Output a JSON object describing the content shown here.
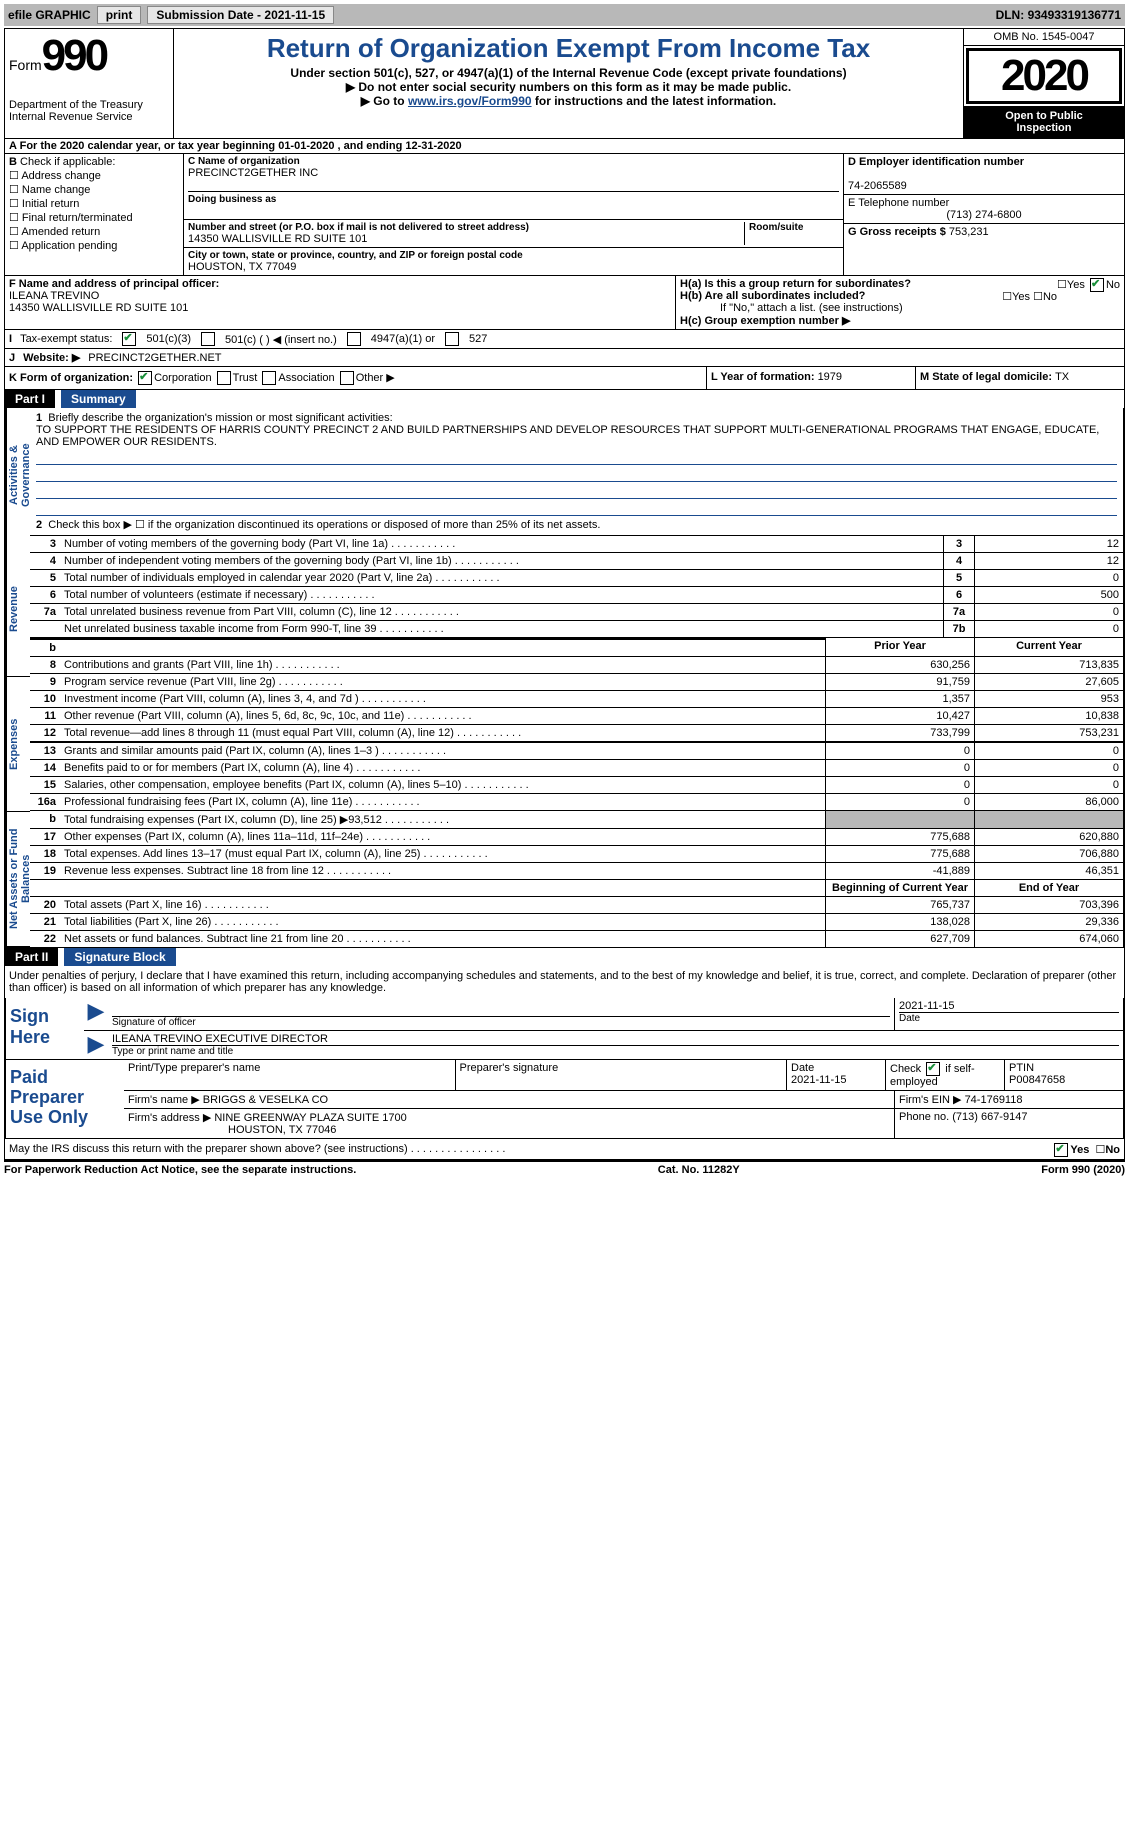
{
  "topbar": {
    "efile": "efile GRAPHIC",
    "print": "print",
    "submission_label": "Submission Date - ",
    "submission_date": "2021-11-15",
    "dln_label": "DLN: ",
    "dln": "93493319136771"
  },
  "header": {
    "form_label": "Form",
    "form_number": "990",
    "dept1": "Department of the Treasury",
    "dept2": "Internal Revenue Service",
    "title": "Return of Organization Exempt From Income Tax",
    "subtitle": "Under section 501(c), 527, or 4947(a)(1) of the Internal Revenue Code (except private foundations)",
    "note1": "Do not enter social security numbers on this form as it may be made public.",
    "note2_pre": "Go to ",
    "note2_link": "www.irs.gov/Form990",
    "note2_post": " for instructions and the latest information.",
    "omb": "OMB No. 1545-0047",
    "year": "2020",
    "inspect1": "Open to Public",
    "inspect2": "Inspection"
  },
  "periodA": "For the 2020 calendar year, or tax year beginning 01-01-2020   , and ending 12-31-2020",
  "sectionB": {
    "label": "Check if applicable:",
    "opts": [
      "Address change",
      "Name change",
      "Initial return",
      "Final return/terminated",
      "Amended return",
      "Application pending"
    ],
    "c_label": "C Name of organization",
    "c_name": "PRECINCT2GETHER INC",
    "dba_label": "Doing business as",
    "addr_label": "Number and street (or P.O. box if mail is not delivered to street address)",
    "room_label": "Room/suite",
    "addr": "14350 WALLISVILLE RD SUITE 101",
    "city_label": "City or town, state or province, country, and ZIP or foreign postal code",
    "city": "HOUSTON, TX  77049",
    "d_label": "D Employer identification number",
    "ein": "74-2065589",
    "e_label": "E Telephone number",
    "phone": "(713) 274-6800",
    "g_label": "G Gross receipts $ ",
    "g_val": "753,231"
  },
  "sectionF": {
    "f_label": "F Name and address of principal officer:",
    "f_name": "ILEANA TREVINO",
    "f_addr1": "14350 WALLISVILLE RD SUITE 101",
    "f_addr2": "HOUSTON, TX  77049",
    "ha_label": "H(a)  Is this a group return for subordinates?",
    "hb_label": "H(b)  Are all subordinates included?",
    "hb_note": "If \"No,\" attach a list. (see instructions)",
    "hc_label": "H(c)  Group exemption number ▶",
    "yes": "Yes",
    "no": "No"
  },
  "rowI": {
    "label": "Tax-exempt status:",
    "o1": "501(c)(3)",
    "o2": "501(c) (  ) ◀ (insert no.)",
    "o3": "4947(a)(1) or",
    "o4": "527"
  },
  "rowJ": {
    "label": "Website: ▶",
    "value": "PRECINCT2GETHER.NET"
  },
  "rowK": {
    "label": "K Form of organization:",
    "o1": "Corporation",
    "o2": "Trust",
    "o3": "Association",
    "o4": "Other ▶",
    "l_label": "L Year of formation: ",
    "l_val": "1979",
    "m_label": "M State of legal domicile: ",
    "m_val": "TX"
  },
  "part1": {
    "tag": "Part I",
    "title": "Summary",
    "line1_label": "Briefly describe the organization's mission or most significant activities:",
    "mission": "TO SUPPORT THE RESIDENTS OF HARRIS COUNTY PRECINCT 2 AND BUILD PARTNERSHIPS AND DEVELOP RESOURCES THAT SUPPORT MULTI-GENERATIONAL PROGRAMS THAT ENGAGE, EDUCATE, AND EMPOWER OUR RESIDENTS.",
    "line2": "Check this box ▶ ☐  if the organization discontinued its operations or disposed of more than 25% of its net assets.",
    "vtabs": [
      "Activities & Governance",
      "Revenue",
      "Expenses",
      "Net Assets or Fund Balances"
    ],
    "gov_rows": [
      {
        "n": "3",
        "d": "Number of voting members of the governing body (Part VI, line 1a)",
        "b": "3",
        "v": "12"
      },
      {
        "n": "4",
        "d": "Number of independent voting members of the governing body (Part VI, line 1b)",
        "b": "4",
        "v": "12"
      },
      {
        "n": "5",
        "d": "Total number of individuals employed in calendar year 2020 (Part V, line 2a)",
        "b": "5",
        "v": "0"
      },
      {
        "n": "6",
        "d": "Total number of volunteers (estimate if necessary)",
        "b": "6",
        "v": "500"
      },
      {
        "n": "7a",
        "d": "Total unrelated business revenue from Part VIII, column (C), line 12",
        "b": "7a",
        "v": "0"
      },
      {
        "n": "",
        "d": "Net unrelated business taxable income from Form 990-T, line 39",
        "b": "7b",
        "v": "0"
      }
    ],
    "col_prior": "Prior Year",
    "col_current": "Current Year",
    "rev_rows": [
      {
        "n": "8",
        "d": "Contributions and grants (Part VIII, line 1h)",
        "p": "630,256",
        "c": "713,835"
      },
      {
        "n": "9",
        "d": "Program service revenue (Part VIII, line 2g)",
        "p": "91,759",
        "c": "27,605"
      },
      {
        "n": "10",
        "d": "Investment income (Part VIII, column (A), lines 3, 4, and 7d )",
        "p": "1,357",
        "c": "953"
      },
      {
        "n": "11",
        "d": "Other revenue (Part VIII, column (A), lines 5, 6d, 8c, 9c, 10c, and 11e)",
        "p": "10,427",
        "c": "10,838"
      },
      {
        "n": "12",
        "d": "Total revenue—add lines 8 through 11 (must equal Part VIII, column (A), line 12)",
        "p": "733,799",
        "c": "753,231"
      }
    ],
    "exp_rows": [
      {
        "n": "13",
        "d": "Grants and similar amounts paid (Part IX, column (A), lines 1–3 )",
        "p": "0",
        "c": "0"
      },
      {
        "n": "14",
        "d": "Benefits paid to or for members (Part IX, column (A), line 4)",
        "p": "0",
        "c": "0"
      },
      {
        "n": "15",
        "d": "Salaries, other compensation, employee benefits (Part IX, column (A), lines 5–10)",
        "p": "0",
        "c": "0"
      },
      {
        "n": "16a",
        "d": "Professional fundraising fees (Part IX, column (A), line 11e)",
        "p": "0",
        "c": "86,000"
      },
      {
        "n": "b",
        "d": "Total fundraising expenses (Part IX, column (D), line 25) ▶93,512",
        "p": "shade",
        "c": "shade"
      },
      {
        "n": "17",
        "d": "Other expenses (Part IX, column (A), lines 11a–11d, 11f–24e)",
        "p": "775,688",
        "c": "620,880"
      },
      {
        "n": "18",
        "d": "Total expenses. Add lines 13–17 (must equal Part IX, column (A), line 25)",
        "p": "775,688",
        "c": "706,880"
      },
      {
        "n": "19",
        "d": "Revenue less expenses. Subtract line 18 from line 12",
        "p": "-41,889",
        "c": "46,351"
      }
    ],
    "col_begin": "Beginning of Current Year",
    "col_end": "End of Year",
    "net_rows": [
      {
        "n": "20",
        "d": "Total assets (Part X, line 16)",
        "p": "765,737",
        "c": "703,396"
      },
      {
        "n": "21",
        "d": "Total liabilities (Part X, line 26)",
        "p": "138,028",
        "c": "29,336"
      },
      {
        "n": "22",
        "d": "Net assets or fund balances. Subtract line 21 from line 20",
        "p": "627,709",
        "c": "674,060"
      }
    ]
  },
  "part2": {
    "tag": "Part II",
    "title": "Signature Block",
    "decl": "Under penalties of perjury, I declare that I have examined this return, including accompanying schedules and statements, and to the best of my knowledge and belief, it is true, correct, and complete. Declaration of preparer (other than officer) is based on all information of which preparer has any knowledge.",
    "sign_here": "Sign Here",
    "sig_officer": "Signature of officer",
    "sig_date": "2021-11-15",
    "date_lbl": "Date",
    "officer_name": "ILEANA TREVINO  EXECUTIVE DIRECTOR",
    "type_lbl": "Type or print name and title",
    "paid_prep": "Paid Preparer Use Only",
    "pp_name_lbl": "Print/Type preparer's name",
    "pp_sig_lbl": "Preparer's signature",
    "pp_date_lbl": "Date",
    "pp_date": "2021-11-15",
    "pp_check_lbl": "Check ☑ if self-employed",
    "ptin_lbl": "PTIN",
    "ptin": "P00847658",
    "firm_name_lbl": "Firm's name    ▶",
    "firm_name": "BRIGGS & VESELKA CO",
    "firm_ein_lbl": "Firm's EIN ▶",
    "firm_ein": "74-1769118",
    "firm_addr_lbl": "Firm's address ▶",
    "firm_addr1": "NINE GREENWAY PLAZA SUITE 1700",
    "firm_addr2": "HOUSTON, TX  77046",
    "firm_phone_lbl": "Phone no. ",
    "firm_phone": "(713) 667-9147",
    "discuss": "May the IRS discuss this return with the preparer shown above? (see instructions)",
    "yes": "Yes",
    "no": "No"
  },
  "footer": {
    "left": "For Paperwork Reduction Act Notice, see the separate instructions.",
    "mid": "Cat. No. 11282Y",
    "right": "Form 990 (2020)"
  }
}
